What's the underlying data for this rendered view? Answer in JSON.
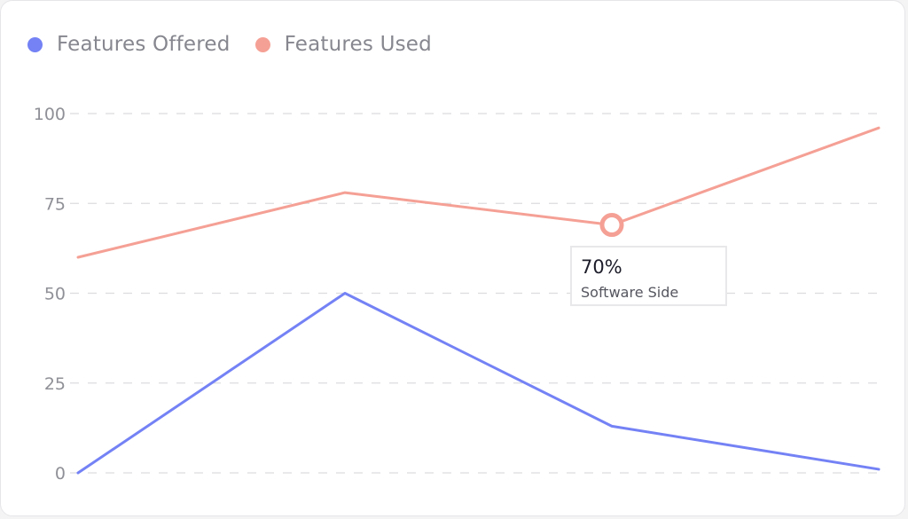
{
  "colors": {
    "offered": "#7482f5",
    "used": "#f5a095",
    "grid": "#dcdcdf"
  },
  "legend": {
    "items": [
      {
        "label": "Features Offered",
        "color": "#7482f5"
      },
      {
        "label": "Features Used",
        "color": "#f5a095"
      }
    ]
  },
  "tooltip": {
    "value": "70%",
    "label": "Software Side",
    "series_color": "#f5a095"
  },
  "chart_data": {
    "type": "line",
    "x": [
      0,
      1,
      2,
      3
    ],
    "ylim": [
      0,
      100
    ],
    "yticks": [
      0,
      25,
      50,
      75,
      100
    ],
    "grid": true,
    "legend_position": "top-left",
    "series": [
      {
        "name": "Features Offered",
        "color": "#7482f5",
        "values": [
          0,
          50,
          13,
          1
        ]
      },
      {
        "name": "Features Used",
        "color": "#f5a095",
        "values": [
          60,
          78,
          69,
          96
        ]
      }
    ],
    "highlight": {
      "series": "Features Used",
      "index": 2
    }
  }
}
